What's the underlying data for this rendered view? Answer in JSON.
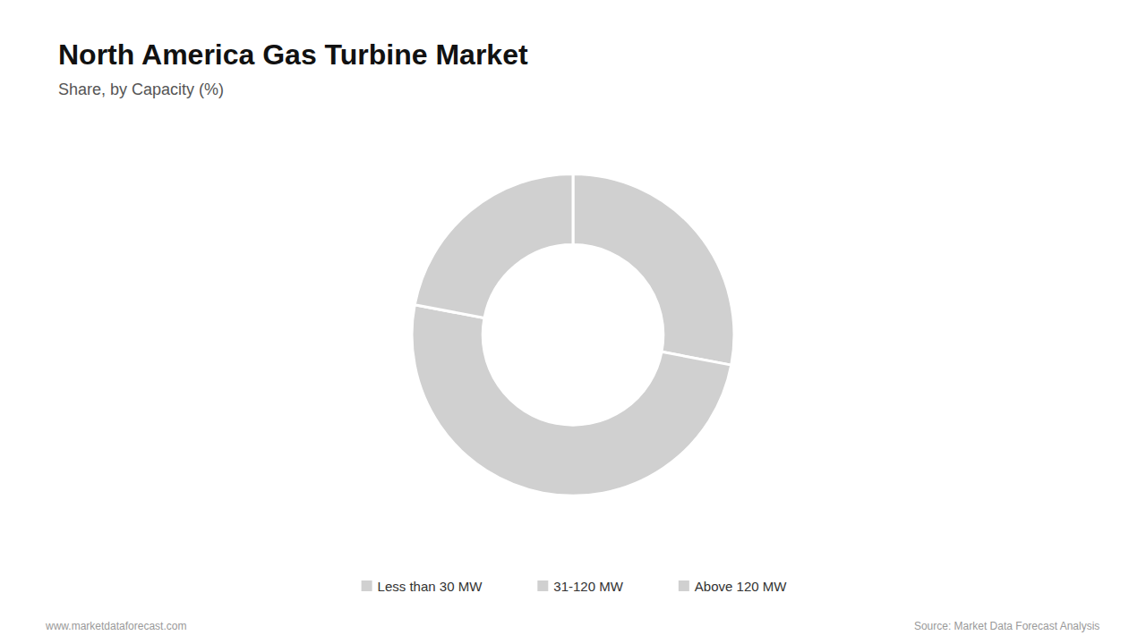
{
  "chart_data": {
    "type": "donut",
    "title": "North America Gas Turbine Market",
    "subtitle": "Share, by Capacity (%)",
    "categories": [
      "Less than 30 MW",
      "31-120 MW",
      "Above 120 MW"
    ],
    "values": [
      28,
      50,
      22
    ],
    "color": "#d0d0d0",
    "legend": "bottom",
    "annotations": [
      "www.marketdataforecast.com",
      "Source: Market Data Forecast Analysis"
    ]
  }
}
